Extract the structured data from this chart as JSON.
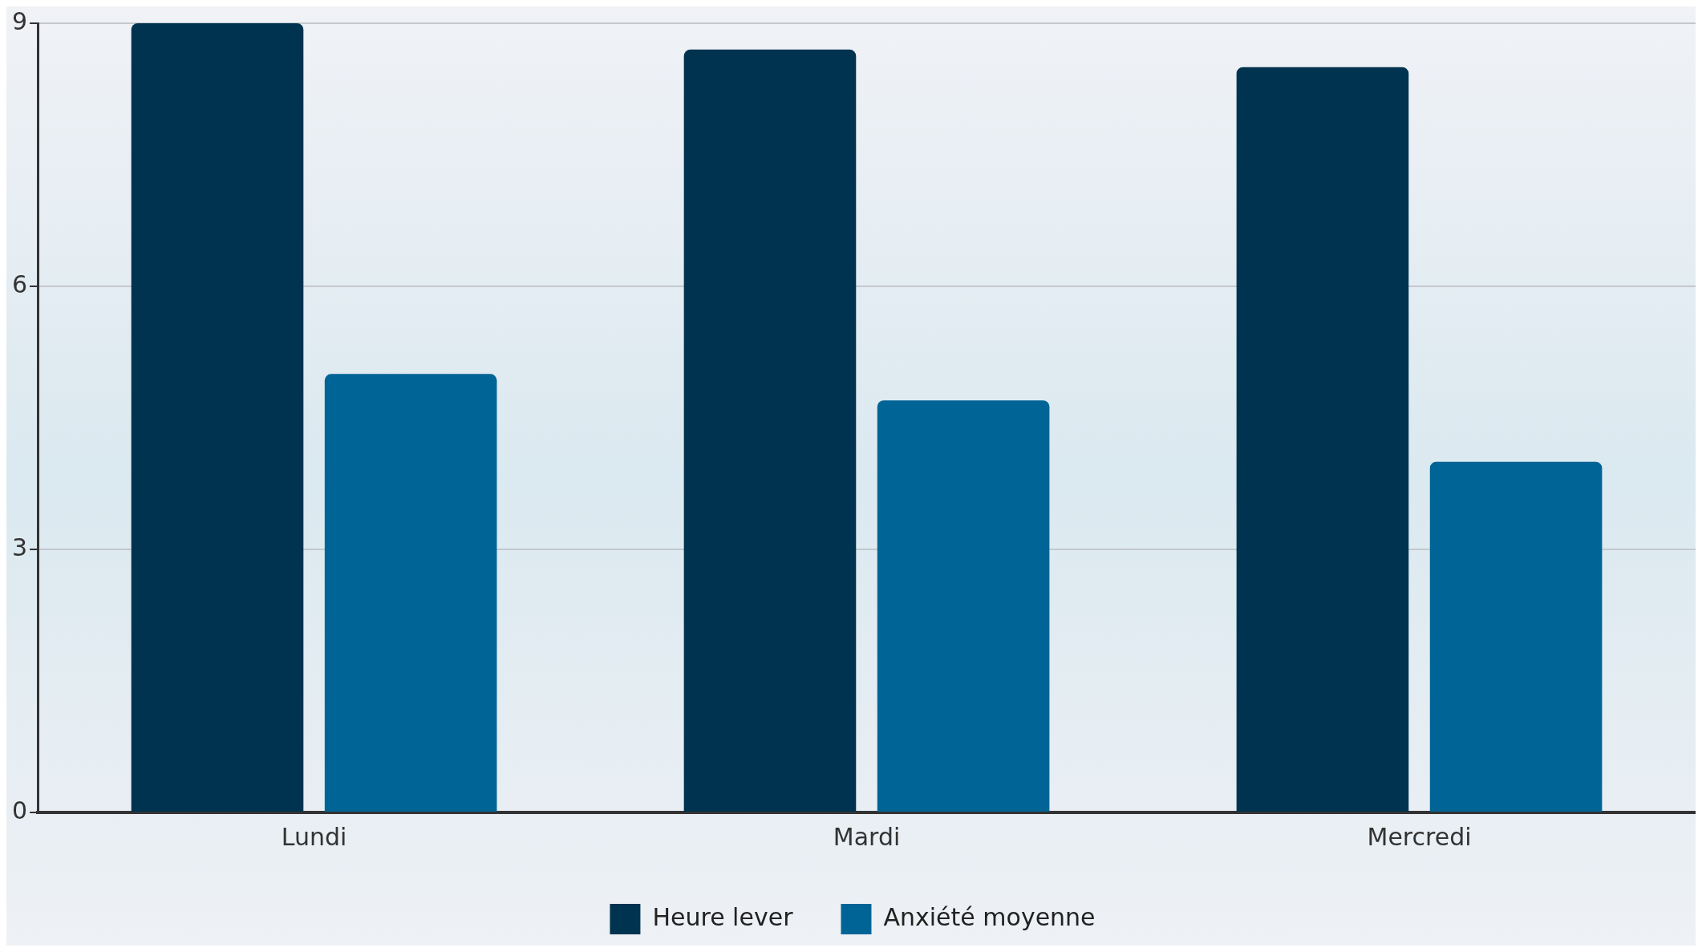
{
  "chart_data": {
    "type": "bar",
    "categories": [
      "Lundi",
      "Mardi",
      "Mercredi"
    ],
    "series": [
      {
        "name": "Heure lever",
        "color": "#00334f",
        "values": [
          9.0,
          8.7,
          8.5
        ]
      },
      {
        "name": "Anxiété moyenne",
        "color": "#006496",
        "values": [
          5.0,
          4.7,
          4.0
        ]
      }
    ],
    "ylim": [
      0,
      9
    ],
    "yticks": [
      0,
      3,
      6,
      9
    ],
    "grid": "y",
    "legend": "bottom"
  }
}
